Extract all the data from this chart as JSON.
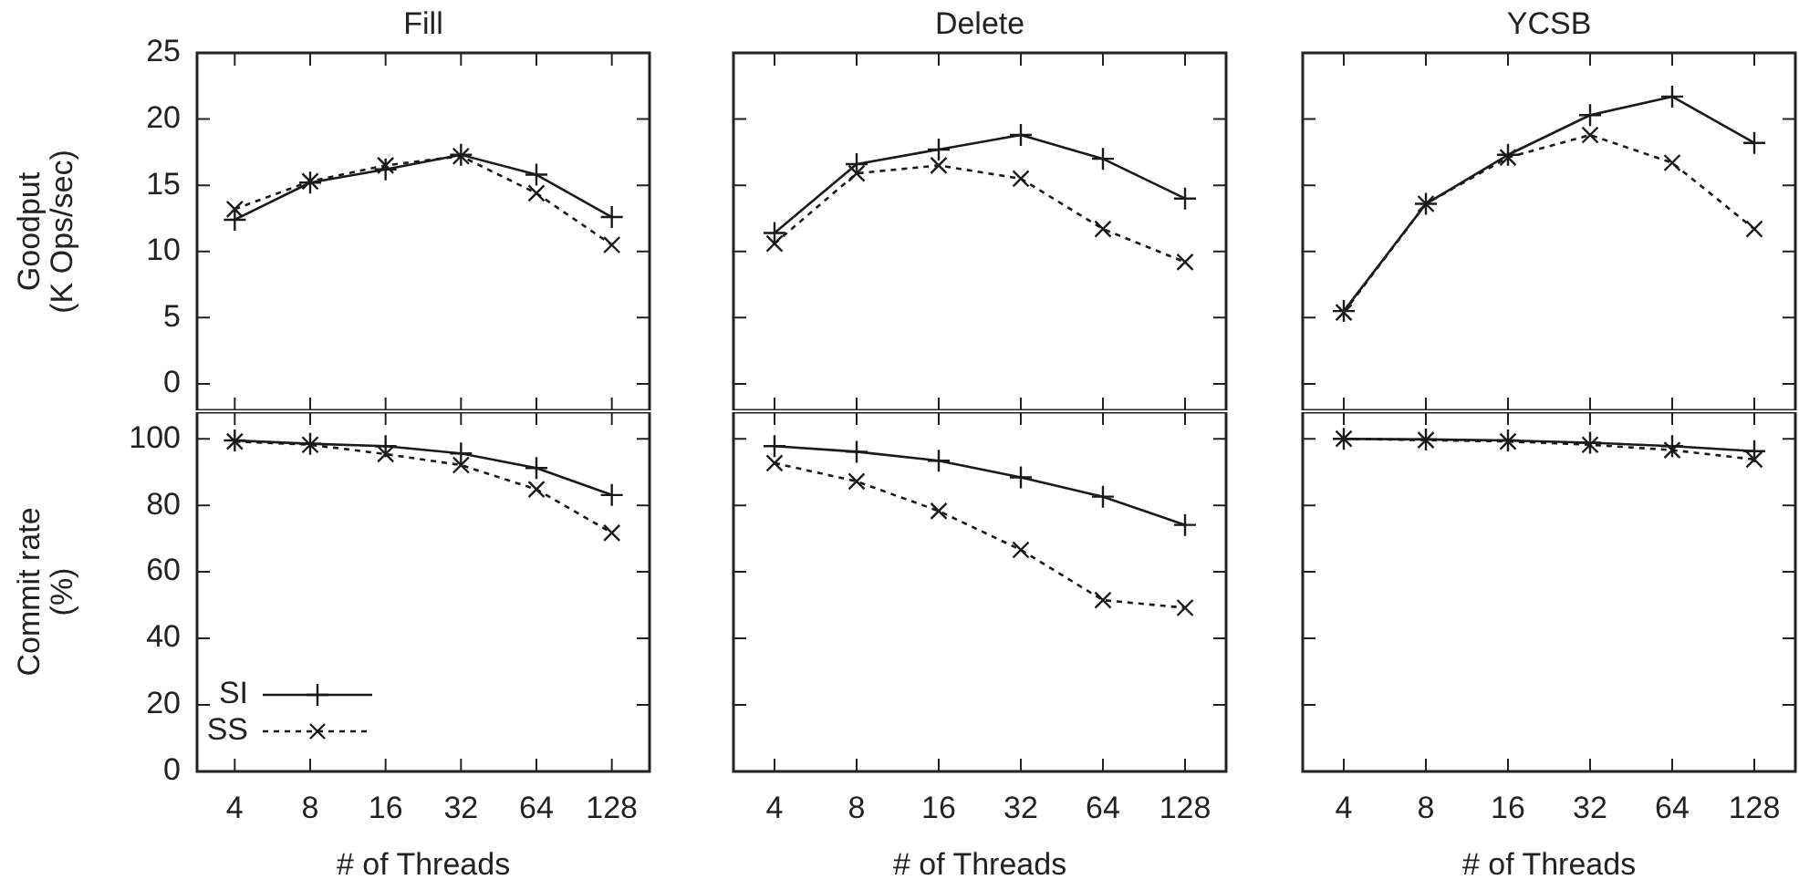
{
  "chart_data": [
    {
      "type": "line",
      "title": "Fill",
      "ylabel": "Goodput\n(K Ops/sec)",
      "categories": [
        "4",
        "8",
        "16",
        "32",
        "64",
        "128"
      ],
      "ylim": [
        -2,
        25
      ],
      "yticks": [
        0,
        5,
        10,
        15,
        20,
        25
      ],
      "tick_labels": "y",
      "series": [
        {
          "color": "#1a1a1a",
          "marker": "plus",
          "line_style": "solid",
          "values": [
            12.4,
            15.2,
            16.2,
            17.3,
            15.8,
            12.6
          ]
        },
        {
          "color": "#1a1a1a",
          "marker": "cross",
          "line_style": "dashed",
          "values": [
            13.2,
            15.3,
            16.5,
            17.2,
            14.4,
            10.5
          ]
        }
      ]
    },
    {
      "type": "line",
      "title": "Delete",
      "categories": [
        "4",
        "8",
        "16",
        "32",
        "64",
        "128"
      ],
      "ylim": [
        -2,
        25
      ],
      "yticks": [
        0,
        5,
        10,
        15,
        20,
        25
      ],
      "tick_labels": false,
      "series": [
        {
          "color": "#1a1a1a",
          "marker": "plus",
          "line_style": "solid",
          "values": [
            11.4,
            16.6,
            17.7,
            18.8,
            17.0,
            14.0
          ]
        },
        {
          "color": "#1a1a1a",
          "marker": "cross",
          "line_style": "dashed",
          "values": [
            10.6,
            15.9,
            16.5,
            15.5,
            11.7,
            9.2
          ]
        }
      ]
    },
    {
      "type": "line",
      "title": "YCSB",
      "categories": [
        "4",
        "8",
        "16",
        "32",
        "64",
        "128"
      ],
      "ylim": [
        -2,
        25
      ],
      "yticks": [
        0,
        5,
        10,
        15,
        20,
        25
      ],
      "tick_labels": false,
      "series": [
        {
          "color": "#1a1a1a",
          "marker": "plus",
          "line_style": "solid",
          "values": [
            5.5,
            13.6,
            17.3,
            20.3,
            21.7,
            18.2
          ]
        },
        {
          "color": "#1a1a1a",
          "marker": "cross",
          "line_style": "dashed",
          "values": [
            5.4,
            13.6,
            17.1,
            18.8,
            16.7,
            11.7
          ]
        }
      ]
    },
    {
      "type": "line",
      "xlabel": "# of Threads",
      "ylabel": "Commit rate\n(%)",
      "categories": [
        "4",
        "8",
        "16",
        "32",
        "64",
        "128"
      ],
      "ylim": [
        0,
        108
      ],
      "yticks": [
        0,
        20,
        40,
        60,
        80,
        100
      ],
      "legend": "bottom left",
      "series": [
        {
          "name": "SI",
          "color": "#1a1a1a",
          "marker": "plus",
          "line_style": "solid",
          "values": [
            99.5,
            98.5,
            97.8,
            95.6,
            91.2,
            83.1
          ]
        },
        {
          "name": "SS",
          "color": "#1a1a1a",
          "marker": "cross",
          "line_style": "dashed",
          "values": [
            99.2,
            98.2,
            95.4,
            92.1,
            84.8,
            71.7
          ]
        }
      ]
    },
    {
      "type": "line",
      "xlabel": "# of Threads",
      "categories": [
        "4",
        "8",
        "16",
        "32",
        "64",
        "128"
      ],
      "ylim": [
        0,
        108
      ],
      "yticks": [
        0,
        20,
        40,
        60,
        80,
        100
      ],
      "tick_labels": "x",
      "series": [
        {
          "color": "#1a1a1a",
          "marker": "plus",
          "line_style": "solid",
          "values": [
            97.8,
            96.1,
            93.4,
            88.4,
            82.6,
            74.1
          ]
        },
        {
          "color": "#1a1a1a",
          "marker": "cross",
          "line_style": "dashed",
          "values": [
            92.7,
            87.2,
            78.3,
            66.6,
            51.5,
            49.2
          ]
        }
      ]
    },
    {
      "type": "line",
      "xlabel": "# of Threads",
      "categories": [
        "4",
        "8",
        "16",
        "32",
        "64",
        "128"
      ],
      "ylim": [
        0,
        108
      ],
      "yticks": [
        0,
        20,
        40,
        60,
        80,
        100
      ],
      "tick_labels": "x",
      "series": [
        {
          "color": "#1a1a1a",
          "marker": "plus",
          "line_style": "solid",
          "values": [
            100,
            99.8,
            99.5,
            98.8,
            97.8,
            96.3
          ]
        },
        {
          "color": "#1a1a1a",
          "marker": "cross",
          "line_style": "dashed",
          "values": [
            100,
            99.6,
            99.2,
            98.2,
            96.6,
            93.8
          ]
        }
      ]
    }
  ]
}
